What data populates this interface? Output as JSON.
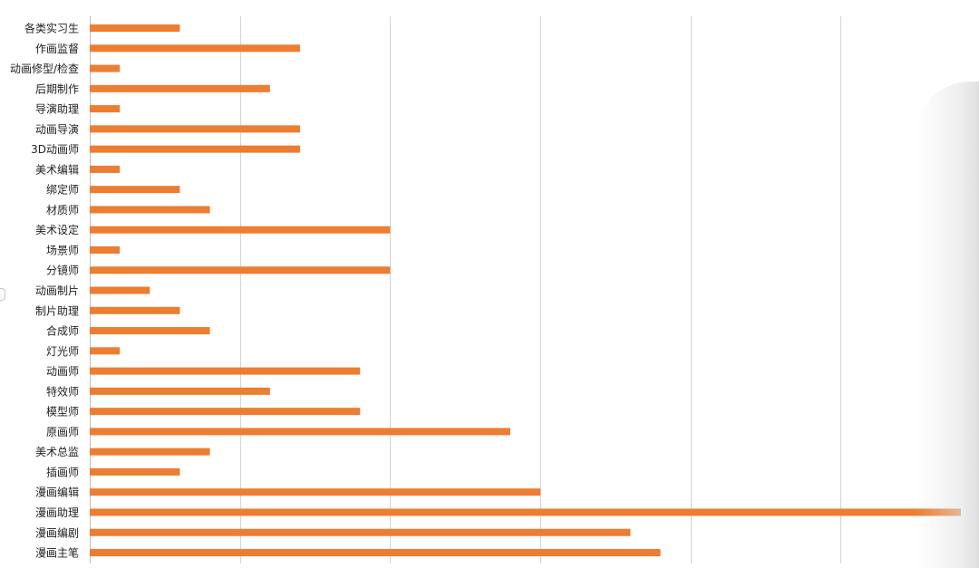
{
  "colors": {
    "bar": "#ED7D31",
    "grid": "#D4D4D4",
    "text": "#222222"
  },
  "chart_data": {
    "type": "bar",
    "orientation": "horizontal",
    "title": "",
    "xlabel": "",
    "ylabel": "",
    "xlim": [
      0,
      29
    ],
    "grid": "vertical",
    "gridlines_at": [
      0,
      5,
      10,
      15,
      20,
      25
    ],
    "legend": "none",
    "categories": [
      "各类实习生",
      "作画监督",
      "动画修型/检查",
      "后期制作",
      "导演助理",
      "动画导演",
      "3D动画师",
      "美术编辑",
      "绑定师",
      "材质师",
      "美术设定",
      "场景师",
      "分镜师",
      "动画制片",
      "制片助理",
      "合成师",
      "灯光师",
      "动画师",
      "特效师",
      "模型师",
      "原画师",
      "美术总监",
      "插画师",
      "漫画编辑",
      "漫画助理",
      "漫画编剧",
      "漫画主笔"
    ],
    "values": [
      3,
      7,
      1,
      6,
      1,
      7,
      7,
      1,
      3,
      4,
      10,
      1,
      10,
      2,
      3,
      4,
      1,
      9,
      6,
      9,
      14,
      4,
      3,
      15,
      29,
      18,
      19
    ]
  }
}
